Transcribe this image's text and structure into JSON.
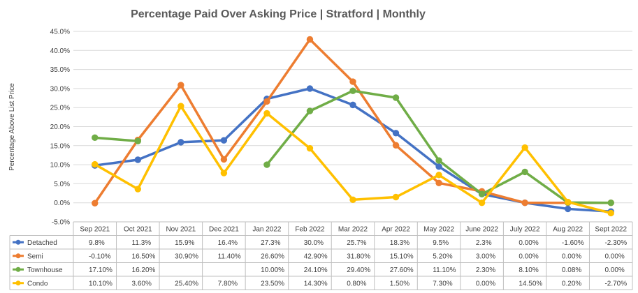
{
  "chart_data": {
    "type": "line",
    "title": "Percentage Paid Over Asking Price | Stratford |  Monthly",
    "ylabel": "Percentage Above List Price",
    "xlabel": "",
    "ylim": [
      -5,
      45
    ],
    "yticks": [
      "-5.0%",
      "0.0%",
      "5.0%",
      "10.0%",
      "15.0%",
      "20.0%",
      "25.0%",
      "30.0%",
      "35.0%",
      "40.0%",
      "45.0%"
    ],
    "ytick_values": [
      -5,
      0,
      5,
      10,
      15,
      20,
      25,
      30,
      35,
      40,
      45
    ],
    "grid": true,
    "legend": "data-table",
    "categories": [
      "Sep 2021",
      "Oct 2021",
      "Nov 2021",
      "Dec 2021",
      "Jan 2022",
      "Feb 2022",
      "Mar 2022",
      "Apr 2022",
      "May 2022",
      "June 2022",
      "July 2022",
      "Aug 2022",
      "Sept 2022"
    ],
    "series": [
      {
        "name": "Detached",
        "color": "#4472c4",
        "values": [
          9.8,
          11.3,
          15.9,
          16.4,
          27.3,
          30.0,
          25.7,
          18.3,
          9.5,
          2.3,
          0.0,
          -1.6,
          -2.3
        ],
        "labels": [
          "9.8%",
          "11.3%",
          "15.9%",
          "16.4%",
          "27.3%",
          "30.0%",
          "25.7%",
          "18.3%",
          "9.5%",
          "2.3%",
          "0.00%",
          "-1.60%",
          "-2.30%"
        ]
      },
      {
        "name": "Semi",
        "color": "#ed7d31",
        "values": [
          -0.1,
          16.5,
          30.9,
          11.4,
          26.6,
          42.9,
          31.8,
          15.1,
          5.2,
          3.0,
          0.0,
          0.0,
          0.0
        ],
        "labels": [
          "-0.10%",
          "16.50%",
          "30.90%",
          "11.40%",
          "26.60%",
          "42.90%",
          "31.80%",
          "15.10%",
          "5.20%",
          "3.00%",
          "0.00%",
          "0.00%",
          "0.00%"
        ]
      },
      {
        "name": "Townhouse",
        "color": "#70ad47",
        "values": [
          17.1,
          16.2,
          null,
          null,
          10.0,
          24.1,
          29.4,
          27.6,
          11.1,
          2.3,
          8.1,
          0.08,
          0.0
        ],
        "labels": [
          "17.10%",
          "16.20%",
          "",
          "",
          "10.00%",
          "24.10%",
          "29.40%",
          "27.60%",
          "11.10%",
          "2.30%",
          "8.10%",
          "0.08%",
          "0.00%"
        ]
      },
      {
        "name": "Condo",
        "color": "#ffc000",
        "values": [
          10.1,
          3.6,
          25.4,
          7.8,
          23.5,
          14.3,
          0.8,
          1.5,
          7.3,
          0.0,
          14.5,
          0.2,
          -2.7
        ],
        "labels": [
          "10.10%",
          "3.60%",
          "25.40%",
          "7.80%",
          "23.50%",
          "14.30%",
          "0.80%",
          "1.50%",
          "7.30%",
          "0.00%",
          "14.50%",
          "0.20%",
          "-2.70%"
        ]
      }
    ]
  }
}
